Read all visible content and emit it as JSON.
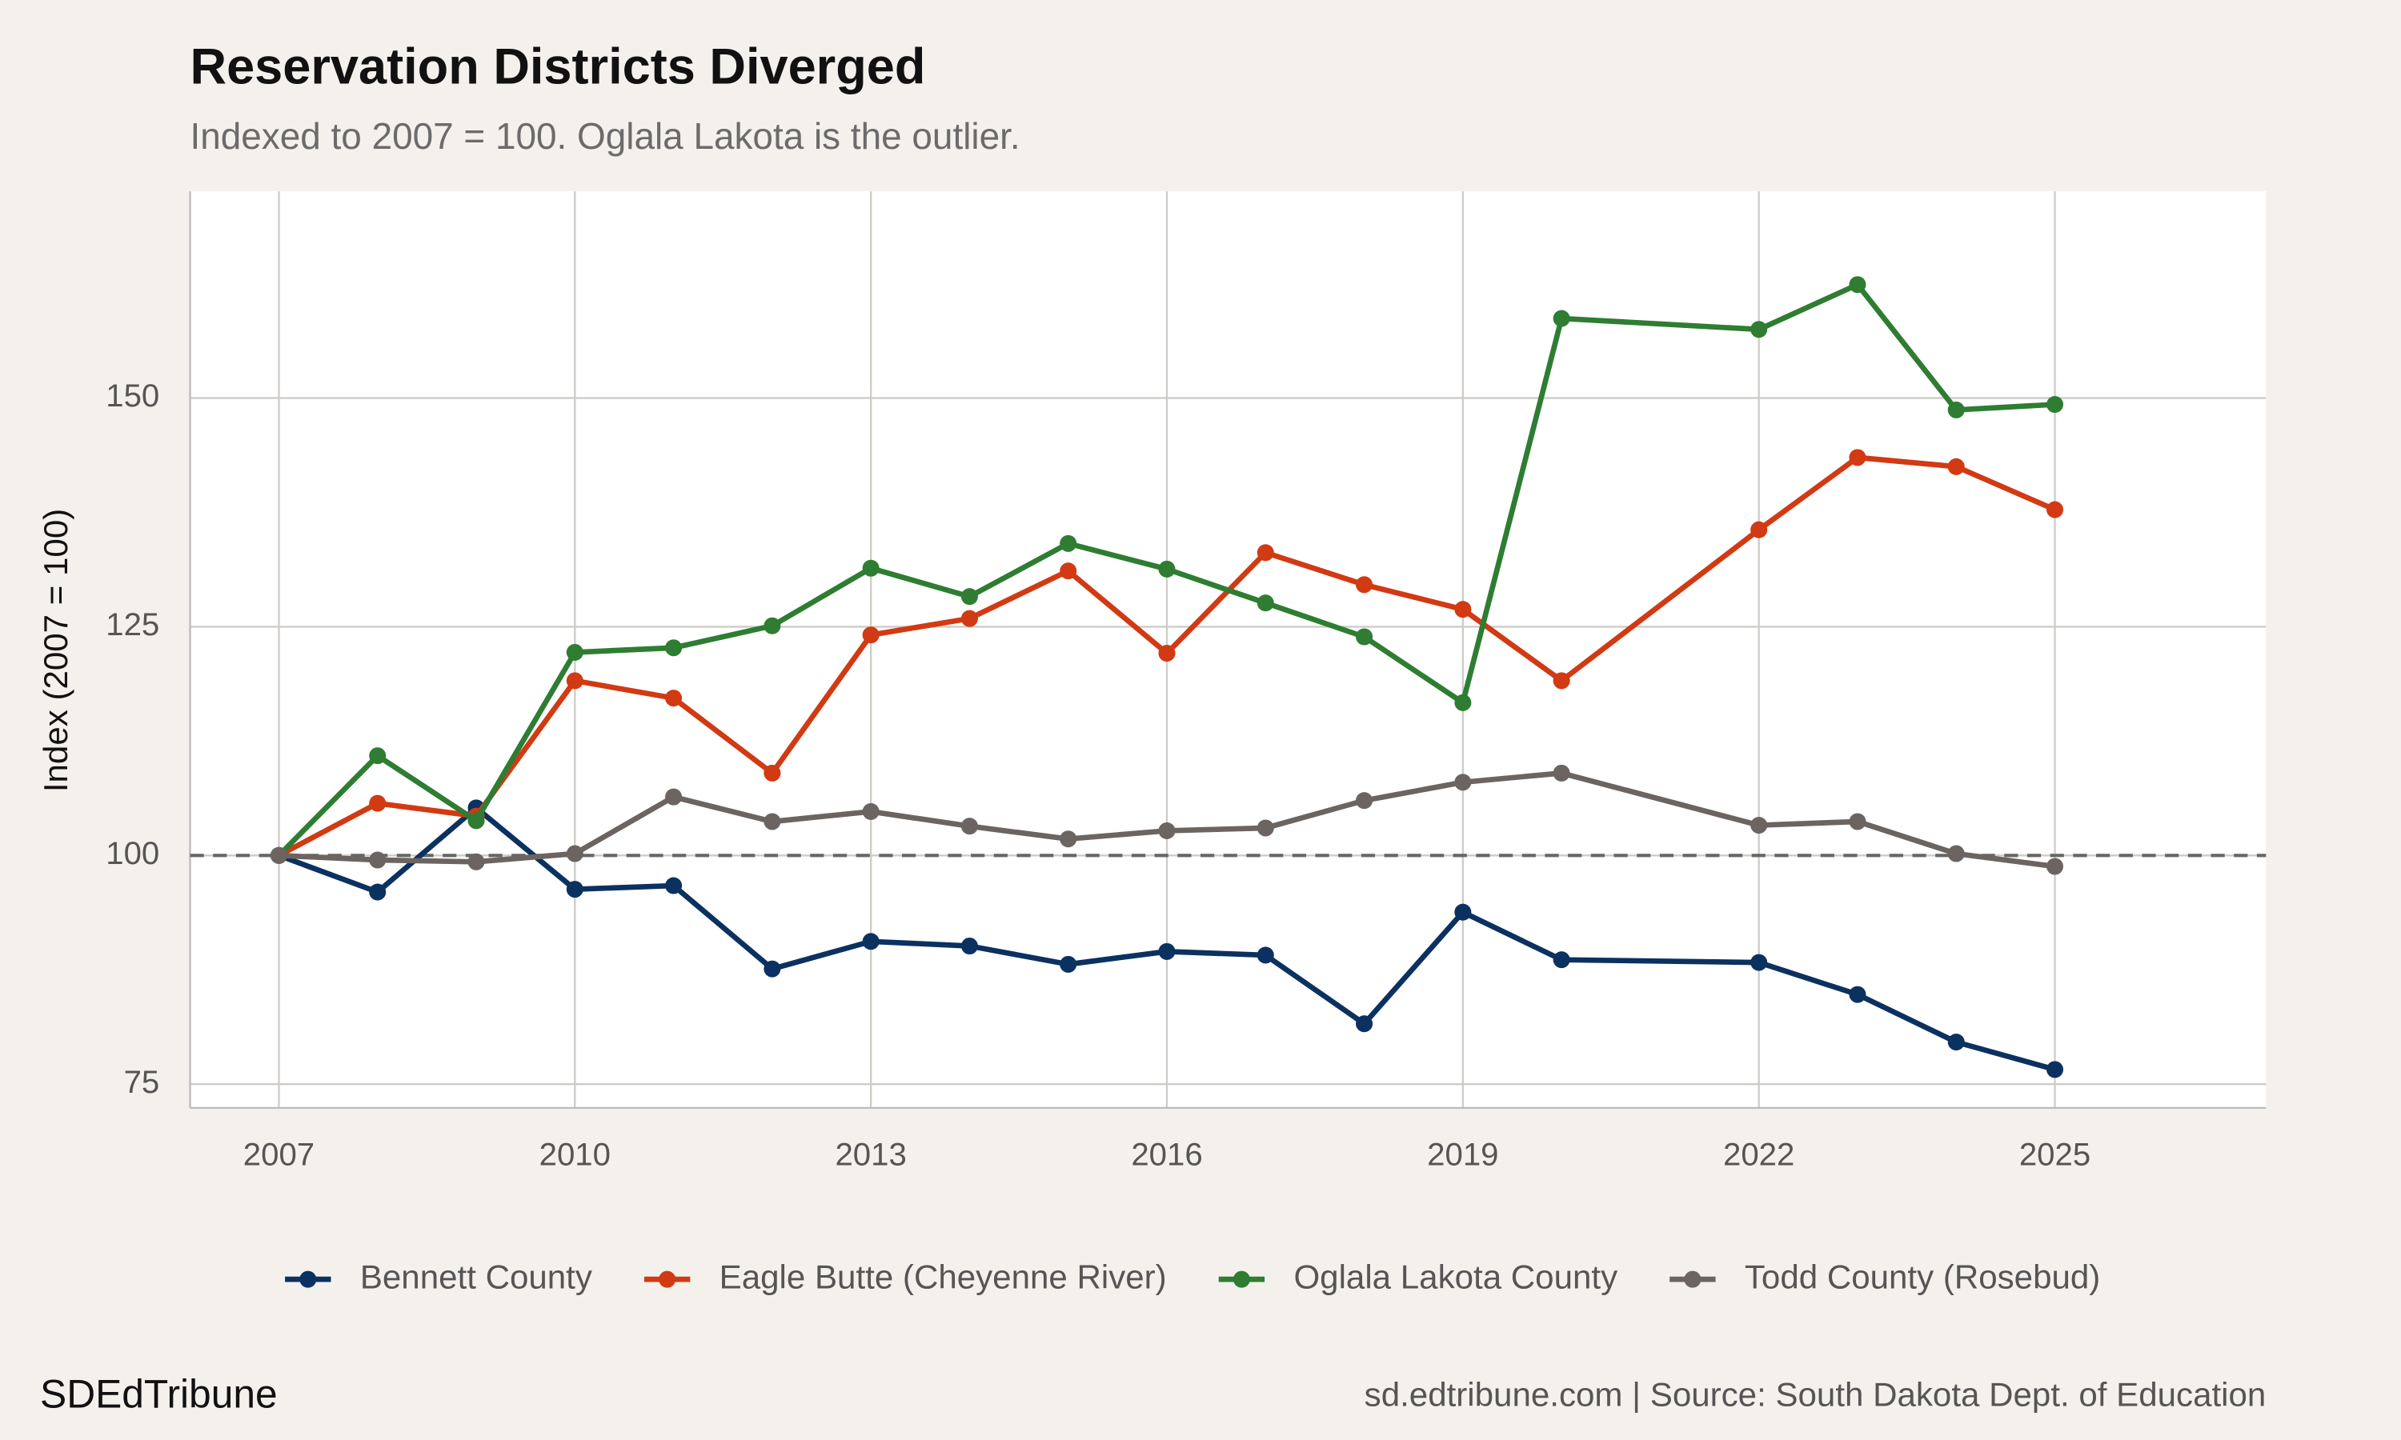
{
  "chart_data": {
    "type": "line",
    "title": "Reservation Districts Diverged",
    "subtitle": "Indexed to 2007 = 100. Oglala Lakota is the outlier.",
    "y_label": "Index (2007 = 100)",
    "brand": "SDEdTribune",
    "source": "sd.edtribune.com | Source: South Dakota Dept. of Education",
    "x": [
      2007,
      2008,
      2009,
      2010,
      2011,
      2012,
      2013,
      2014,
      2015,
      2016,
      2017,
      2018,
      2019,
      2020,
      2022,
      2023,
      2024,
      2025
    ],
    "series": [
      {
        "name": "Bennett County",
        "color": "#0b3160",
        "values": [
          100,
          96.0,
          105.2,
          96.3,
          96.7,
          87.6,
          90.6,
          90.1,
          88.1,
          89.5,
          89.1,
          81.6,
          93.8,
          88.6,
          88.3,
          84.8,
          79.6,
          76.6
        ]
      },
      {
        "name": "Eagle Butte (Cheyenne River)",
        "color": "#d13a12",
        "values": [
          100,
          105.7,
          104.3,
          119.1,
          117.2,
          109.0,
          124.1,
          125.9,
          131.1,
          122.1,
          133.1,
          129.6,
          126.9,
          119.1,
          135.6,
          143.5,
          142.5,
          137.8
        ]
      },
      {
        "name": "Oglala Lakota County",
        "color": "#2e7d32",
        "values": [
          100,
          110.9,
          103.8,
          122.2,
          122.7,
          125.1,
          131.4,
          128.3,
          134.1,
          131.3,
          127.6,
          123.9,
          116.7,
          158.7,
          157.5,
          162.4,
          148.7,
          149.3
        ]
      },
      {
        "name": "Todd County (Rosebud)",
        "color": "#6b6461",
        "values": [
          100,
          99.5,
          99.3,
          100.2,
          106.4,
          103.7,
          104.8,
          103.2,
          101.8,
          102.7,
          103.0,
          106.0,
          108.0,
          109.0,
          103.3,
          103.7,
          100.2,
          98.8
        ]
      }
    ],
    "xlim": [
      2006.1,
      2027.14
    ],
    "ylim": [
      72.4,
      172.6
    ],
    "xticks": [
      2007,
      2010,
      2013,
      2016,
      2019,
      2022,
      2025
    ],
    "yticks": [
      75,
      100,
      125,
      150
    ],
    "reference_line": 100,
    "grid": true,
    "legend": "bottom"
  }
}
